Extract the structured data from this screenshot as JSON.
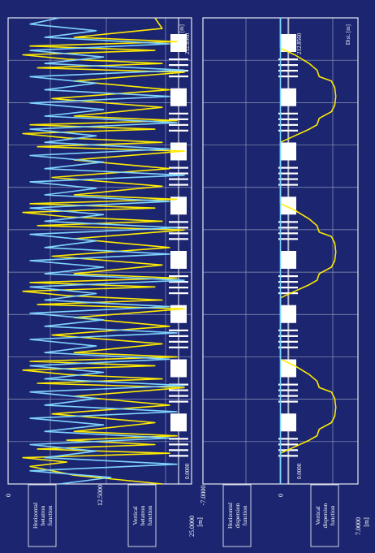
{
  "colors": {
    "background": "#1c2670",
    "grid": "#8f96b8",
    "frame": "#e6e9f5",
    "horizontal": "#ffeb00",
    "vertical": "#7fd4ff",
    "text": "#ffffff",
    "magnet": "#ffffff"
  },
  "chart_data": [
    {
      "id": "betatron",
      "type": "line",
      "orientation": "rotated-90",
      "x_label": "Dist. [m]",
      "x_range": [
        0.0,
        212.856
      ],
      "x_tick_labels": {
        "start": "0.0000",
        "end": "212.8560"
      },
      "y_unit": "[m]",
      "y_tick_labels": [
        "25.0000",
        "12.5000",
        "0"
      ],
      "ylim": [
        0,
        25
      ],
      "legend": [
        {
          "label": "Horizontal betatron function",
          "line1": "Horizontal",
          "line2": "betatron",
          "line3": "function",
          "color": "#ffeb00"
        },
        {
          "label": "Vertical betatron function",
          "line1": "Vertical",
          "line2": "betatron",
          "line3": "function",
          "color": "#7fd4ff"
        }
      ],
      "series": [
        {
          "key": "horizontal",
          "x": [
            0,
            4,
            8,
            10,
            12,
            14,
            16,
            18,
            20,
            22,
            24,
            28,
            32,
            36,
            40,
            44,
            46,
            48,
            50,
            52,
            54,
            56,
            58,
            60,
            64,
            68,
            72,
            76,
            80,
            82,
            84,
            86,
            88,
            90,
            92,
            94,
            96,
            100,
            104,
            108,
            112,
            116,
            118,
            120,
            122,
            124,
            126,
            128,
            130,
            132,
            136,
            140,
            144,
            148,
            152,
            154,
            156,
            158,
            160,
            162,
            164,
            166,
            168,
            172,
            176,
            180,
            184,
            188,
            190,
            192,
            194,
            196,
            198,
            200,
            202,
            204,
            208,
            212.856
          ],
          "y": [
            21,
            9,
            3,
            8,
            2,
            22,
            4,
            20,
            8,
            23,
            9,
            20,
            6,
            22,
            9,
            24,
            4,
            21,
            8,
            2,
            20,
            3,
            23,
            9,
            21,
            6,
            22,
            9,
            24,
            4,
            21,
            8,
            2,
            20,
            3,
            23,
            9,
            21,
            6,
            22,
            9,
            24,
            4,
            21,
            8,
            2,
            20,
            3,
            23,
            9,
            21,
            6,
            22,
            9,
            24,
            4,
            21,
            8,
            2,
            20,
            3,
            23,
            9,
            21,
            6,
            22,
            9,
            24,
            4,
            21,
            8,
            2,
            20,
            3,
            23,
            9,
            21,
            20
          ]
        },
        {
          "key": "vertical",
          "x": [
            0,
            3,
            6,
            9,
            12,
            15,
            18,
            21,
            24,
            27,
            30,
            33,
            36,
            39,
            42,
            45,
            48,
            51,
            54,
            57,
            60,
            63,
            66,
            69,
            72,
            75,
            78,
            81,
            84,
            87,
            90,
            93,
            96,
            99,
            102,
            105,
            108,
            111,
            114,
            117,
            120,
            123,
            126,
            129,
            132,
            135,
            138,
            141,
            144,
            147,
            150,
            153,
            156,
            159,
            162,
            165,
            168,
            171,
            174,
            177,
            180,
            183,
            186,
            189,
            192,
            195,
            198,
            201,
            204,
            207,
            210,
            212.856
          ],
          "y": [
            7,
            14,
            3,
            23,
            5,
            12,
            3,
            22,
            5,
            13,
            3,
            23,
            5,
            12,
            3,
            24,
            5,
            13,
            3,
            22,
            5,
            12,
            3,
            23,
            5,
            13,
            3,
            22,
            5,
            12,
            3,
            24,
            5,
            13,
            3,
            22,
            5,
            12,
            3,
            23,
            5,
            13,
            3,
            22,
            5,
            12,
            3,
            24,
            5,
            13,
            3,
            22,
            5,
            12,
            3,
            23,
            5,
            13,
            3,
            22,
            5,
            12,
            3,
            24,
            5,
            13,
            3,
            22,
            5,
            12,
            3,
            7
          ]
        }
      ]
    },
    {
      "id": "dispersion",
      "type": "line",
      "orientation": "rotated-90",
      "x_label": "Dist. [m]",
      "x_range": [
        0.0,
        212.856
      ],
      "x_tick_labels": {
        "start": "0.0000",
        "end": "212.8560"
      },
      "y_unit": "[m]",
      "y_tick_labels": [
        "7.0000",
        "0",
        "-7.0000"
      ],
      "ylim": [
        -7,
        7
      ],
      "legend": [
        {
          "label": "Horizontal dispersion function",
          "line1": "Horizontal",
          "line2": "dispersion",
          "line3": "function",
          "color": "#ffeb00"
        },
        {
          "label": "Vertical dispersion function",
          "line1": "Vertical",
          "line2": "dispersion",
          "line3": "function",
          "color": "#7fd4ff"
        }
      ],
      "series": [
        {
          "key": "horizontal",
          "x": [
            0,
            14,
            17,
            20,
            22,
            25,
            28,
            31,
            35,
            39,
            42,
            44,
            47,
            50,
            54,
            57,
            70,
            85,
            88,
            91,
            93,
            96,
            99,
            102,
            106,
            110,
            113,
            115,
            118,
            121,
            125,
            128,
            141,
            156,
            159,
            162,
            164,
            167,
            170,
            173,
            177,
            181,
            184,
            186,
            189,
            192,
            196,
            199,
            212.856
          ],
          "y": [
            0,
            0,
            1.3,
            2.6,
            3.3,
            3.5,
            4.6,
            4.9,
            5.0,
            4.9,
            4.6,
            3.5,
            3.3,
            2.6,
            1.3,
            0,
            0,
            0,
            1.3,
            2.6,
            3.3,
            3.5,
            4.6,
            4.9,
            5.0,
            4.9,
            4.6,
            3.5,
            3.3,
            2.6,
            1.3,
            0,
            0,
            0,
            1.3,
            2.6,
            3.3,
            3.5,
            4.6,
            4.9,
            5.0,
            4.9,
            4.6,
            3.5,
            3.3,
            2.6,
            1.3,
            0,
            0
          ]
        },
        {
          "key": "vertical",
          "x": [
            0,
            212.856
          ],
          "y": [
            0,
            0
          ]
        }
      ]
    }
  ]
}
